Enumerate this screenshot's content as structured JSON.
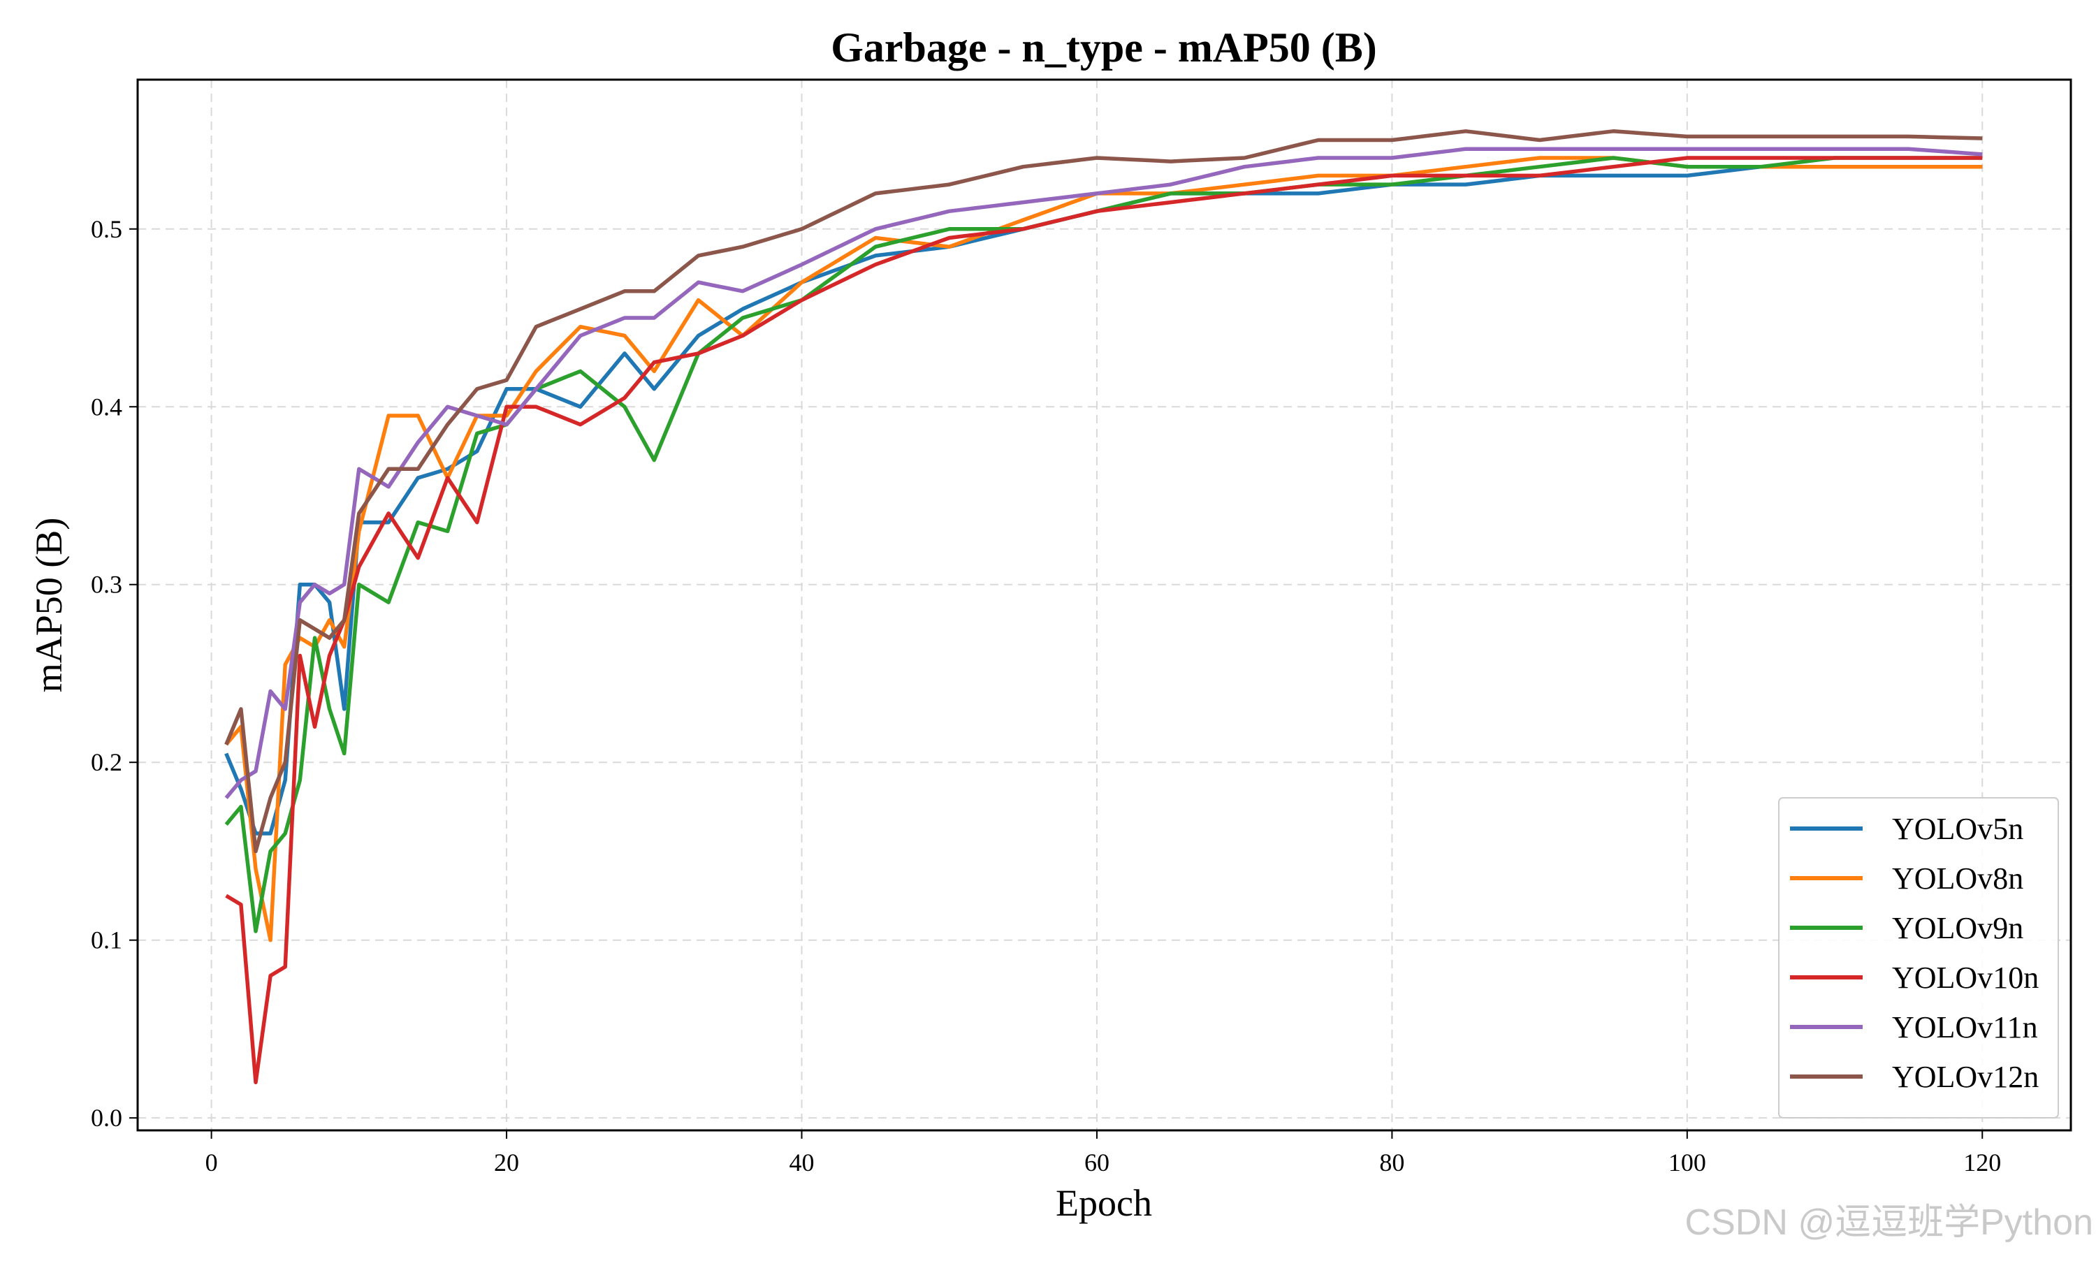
{
  "watermark": "CSDN @逗逗班学Python",
  "chart_data": {
    "type": "line",
    "title": "Garbage - n_type - mAP50 (B)",
    "xlabel": "Epoch",
    "ylabel": "mAP50 (B)",
    "xlim": [
      -5,
      126
    ],
    "ylim": [
      -0.007,
      0.584
    ],
    "xticks": [
      0,
      20,
      40,
      60,
      80,
      100,
      120
    ],
    "yticks": [
      0.0,
      0.1,
      0.2,
      0.3,
      0.4,
      0.5
    ],
    "ytick_labels": [
      "0.0",
      "0.1",
      "0.2",
      "0.3",
      "0.4",
      "0.5"
    ],
    "grid": true,
    "legend_position": "lower-right",
    "anchor_epochs": [
      1,
      2,
      3,
      4,
      5,
      6,
      7,
      8,
      9,
      10,
      12,
      14,
      16,
      18,
      20,
      22,
      25,
      28,
      30,
      33,
      36,
      40,
      45,
      50,
      55,
      60,
      65,
      70,
      75,
      80,
      85,
      90,
      95,
      100,
      105,
      110,
      115,
      120
    ],
    "series": [
      {
        "name": "YOLOv5n",
        "color": "#1f77b4",
        "anchor_values": [
          0.205,
          0.185,
          0.16,
          0.16,
          0.19,
          0.3,
          0.3,
          0.29,
          0.23,
          0.335,
          0.335,
          0.36,
          0.365,
          0.375,
          0.41,
          0.41,
          0.4,
          0.43,
          0.41,
          0.44,
          0.455,
          0.47,
          0.485,
          0.49,
          0.5,
          0.51,
          0.52,
          0.52,
          0.52,
          0.525,
          0.525,
          0.53,
          0.53,
          0.53,
          0.535,
          0.535,
          0.535,
          0.535
        ]
      },
      {
        "name": "YOLOv8n",
        "color": "#ff7f0e",
        "anchor_values": [
          0.21,
          0.22,
          0.14,
          0.1,
          0.255,
          0.27,
          0.265,
          0.28,
          0.265,
          0.33,
          0.395,
          0.395,
          0.36,
          0.395,
          0.395,
          0.42,
          0.445,
          0.44,
          0.42,
          0.46,
          0.44,
          0.47,
          0.495,
          0.49,
          0.505,
          0.52,
          0.52,
          0.525,
          0.53,
          0.53,
          0.535,
          0.54,
          0.54,
          0.535,
          0.535,
          0.535,
          0.535,
          0.535
        ]
      },
      {
        "name": "YOLOv9n",
        "color": "#2ca02c",
        "anchor_values": [
          0.165,
          0.175,
          0.105,
          0.15,
          0.16,
          0.19,
          0.27,
          0.23,
          0.205,
          0.3,
          0.29,
          0.335,
          0.33,
          0.385,
          0.39,
          0.41,
          0.42,
          0.4,
          0.37,
          0.43,
          0.45,
          0.46,
          0.49,
          0.5,
          0.5,
          0.51,
          0.52,
          0.52,
          0.525,
          0.525,
          0.53,
          0.535,
          0.54,
          0.535,
          0.535,
          0.54,
          0.54,
          0.54
        ]
      },
      {
        "name": "YOLOv10n",
        "color": "#d62728",
        "anchor_values": [
          0.125,
          0.12,
          0.02,
          0.08,
          0.085,
          0.26,
          0.22,
          0.26,
          0.28,
          0.31,
          0.34,
          0.315,
          0.36,
          0.335,
          0.4,
          0.4,
          0.39,
          0.405,
          0.425,
          0.43,
          0.44,
          0.46,
          0.48,
          0.495,
          0.5,
          0.51,
          0.515,
          0.52,
          0.525,
          0.53,
          0.53,
          0.53,
          0.535,
          0.54,
          0.54,
          0.54,
          0.54,
          0.54
        ]
      },
      {
        "name": "YOLOv11n",
        "color": "#9467bd",
        "anchor_values": [
          0.18,
          0.19,
          0.195,
          0.24,
          0.23,
          0.29,
          0.3,
          0.295,
          0.3,
          0.365,
          0.355,
          0.38,
          0.4,
          0.395,
          0.39,
          0.41,
          0.44,
          0.45,
          0.45,
          0.47,
          0.465,
          0.48,
          0.5,
          0.51,
          0.515,
          0.52,
          0.525,
          0.535,
          0.54,
          0.54,
          0.545,
          0.545,
          0.545,
          0.545,
          0.545,
          0.545,
          0.545,
          0.542
        ]
      },
      {
        "name": "YOLOv12n",
        "color": "#8c564b",
        "anchor_values": [
          0.21,
          0.23,
          0.15,
          0.18,
          0.2,
          0.28,
          0.275,
          0.27,
          0.28,
          0.34,
          0.365,
          0.365,
          0.39,
          0.41,
          0.415,
          0.445,
          0.455,
          0.465,
          0.465,
          0.485,
          0.49,
          0.5,
          0.52,
          0.525,
          0.535,
          0.54,
          0.538,
          0.54,
          0.55,
          0.55,
          0.555,
          0.55,
          0.555,
          0.552,
          0.552,
          0.552,
          0.552,
          0.551
        ]
      }
    ]
  }
}
